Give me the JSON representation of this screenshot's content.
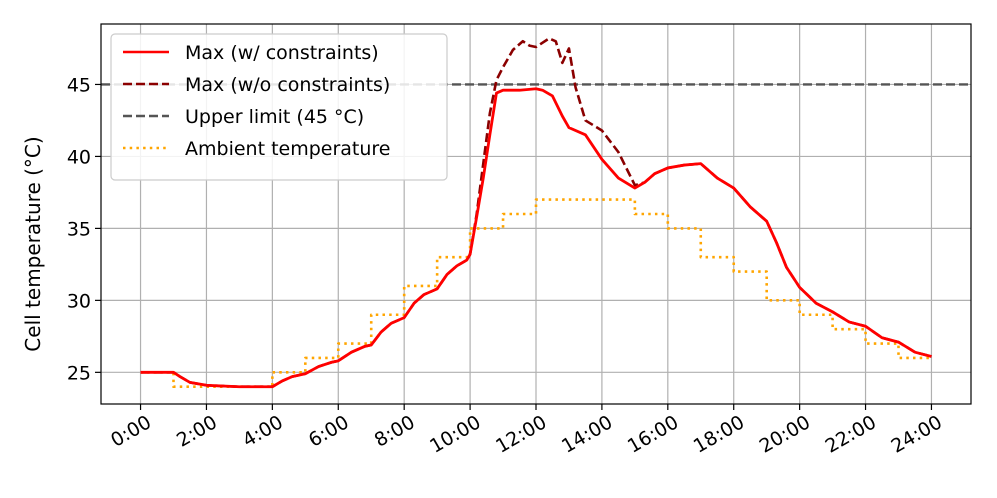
{
  "chart_data": {
    "type": "line",
    "title": "",
    "xlabel": "",
    "ylabel": "Cell temperature (°C)",
    "xlim": [
      -1.2,
      25.2
    ],
    "ylim": [
      22.8,
      49.2
    ],
    "grid": true,
    "legend_position": "top-left",
    "x_ticks": [
      0,
      2,
      4,
      6,
      8,
      10,
      12,
      14,
      16,
      18,
      20,
      22,
      24
    ],
    "x_tick_labels": [
      "0:00",
      "2:00",
      "4:00",
      "6:00",
      "8:00",
      "10:00",
      "12:00",
      "14:00",
      "16:00",
      "18:00",
      "20:00",
      "22:00",
      "24:00"
    ],
    "y_ticks": [
      25,
      30,
      35,
      40,
      45
    ],
    "y_tick_labels": [
      "25",
      "30",
      "35",
      "40",
      "45"
    ],
    "series": [
      {
        "name": "Max (w/ constraints)",
        "color": "#ff0000",
        "style": "solid",
        "x": [
          0,
          1,
          1.2,
          1.5,
          2,
          3,
          4,
          4.3,
          4.6,
          5,
          5.4,
          5.8,
          6,
          6.4,
          6.8,
          7,
          7.3,
          7.6,
          8,
          8.3,
          8.6,
          9,
          9.3,
          9.6,
          9.9,
          10,
          10.2,
          10.4,
          10.6,
          10.8,
          11,
          11.5,
          12,
          12.2,
          12.5,
          12.8,
          13,
          13.5,
          14,
          14.5,
          15,
          15.3,
          15.6,
          16,
          16.5,
          17,
          17.5,
          18,
          18.5,
          19,
          19.3,
          19.6,
          20,
          20.5,
          21,
          21.5,
          22,
          22.5,
          23,
          23.5,
          24
        ],
        "y": [
          25,
          25,
          24.7,
          24.3,
          24.1,
          24,
          24,
          24.4,
          24.7,
          24.9,
          25.4,
          25.7,
          25.8,
          26.4,
          26.8,
          26.9,
          27.8,
          28.4,
          28.8,
          29.8,
          30.4,
          30.8,
          31.8,
          32.4,
          32.8,
          33.2,
          35.8,
          38.5,
          41.5,
          44.4,
          44.6,
          44.6,
          44.7,
          44.6,
          44.2,
          42.8,
          42.0,
          41.5,
          39.8,
          38.5,
          37.8,
          38.2,
          38.8,
          39.2,
          39.4,
          39.5,
          38.5,
          37.8,
          36.5,
          35.5,
          34.0,
          32.3,
          30.9,
          29.8,
          29.2,
          28.5,
          28.2,
          27.4,
          27.1,
          26.4,
          26.1
        ]
      },
      {
        "name": "Max (w/o constraints)",
        "color": "#8b0000",
        "style": "dashed",
        "x": [
          0,
          1,
          1.2,
          1.5,
          2,
          3,
          4,
          4.3,
          4.6,
          5,
          5.4,
          5.8,
          6,
          6.4,
          6.8,
          7,
          7.3,
          7.6,
          8,
          8.3,
          8.6,
          9,
          9.3,
          9.6,
          9.9,
          10,
          10.2,
          10.4,
          10.6,
          10.8,
          11,
          11.3,
          11.6,
          11.8,
          12,
          12.2,
          12.4,
          12.6,
          12.8,
          13,
          13.2,
          13.5,
          14,
          14.5,
          15,
          15.3,
          15.6,
          16,
          16.5,
          17,
          17.5,
          18,
          18.5,
          19,
          19.3,
          19.6,
          20,
          20.5,
          21,
          21.5,
          22,
          22.5,
          23,
          23.5,
          24
        ],
        "y": [
          25,
          25,
          24.7,
          24.3,
          24.1,
          24,
          24,
          24.4,
          24.7,
          24.9,
          25.4,
          25.7,
          25.8,
          26.4,
          26.8,
          26.9,
          27.8,
          28.4,
          28.8,
          29.8,
          30.4,
          30.8,
          31.8,
          32.4,
          32.8,
          33.2,
          36.0,
          39.5,
          43.0,
          45.3,
          46.2,
          47.4,
          48.0,
          47.7,
          47.6,
          47.9,
          48.2,
          48.0,
          46.5,
          47.5,
          44.8,
          42.5,
          41.8,
          40.3,
          38.0,
          38.2,
          38.8,
          39.2,
          39.4,
          39.5,
          38.5,
          37.8,
          36.5,
          35.5,
          34.0,
          32.3,
          30.9,
          29.8,
          29.2,
          28.5,
          28.2,
          27.4,
          27.1,
          26.4,
          26.1
        ]
      },
      {
        "name": "Upper limit (45 °C)",
        "color": "#555555",
        "style": "dashed",
        "x": [
          -1.2,
          25.2
        ],
        "y": [
          45,
          45
        ]
      },
      {
        "name": "Ambient temperature",
        "color": "#ffa500",
        "style": "dotted",
        "x": [
          0,
          1,
          1,
          2,
          2,
          3,
          3,
          4,
          4,
          5,
          5,
          6,
          6,
          7,
          7,
          8,
          8,
          9,
          9,
          10,
          10,
          11,
          11,
          12,
          12,
          13,
          13,
          14,
          14,
          15,
          15,
          16,
          16,
          17,
          17,
          18,
          18,
          19,
          19,
          20,
          20,
          21,
          21,
          22,
          22,
          23,
          23,
          24
        ],
        "y": [
          25,
          25,
          24,
          24,
          24,
          24,
          24,
          24,
          25,
          25,
          26,
          26,
          27,
          27,
          29,
          29,
          31,
          31,
          33,
          33,
          35,
          35,
          36,
          36,
          37,
          37,
          37,
          37,
          37,
          37,
          36,
          36,
          35,
          35,
          33,
          33,
          32,
          32,
          30,
          30,
          29,
          29,
          28,
          28,
          27,
          27,
          26,
          26
        ]
      }
    ]
  }
}
